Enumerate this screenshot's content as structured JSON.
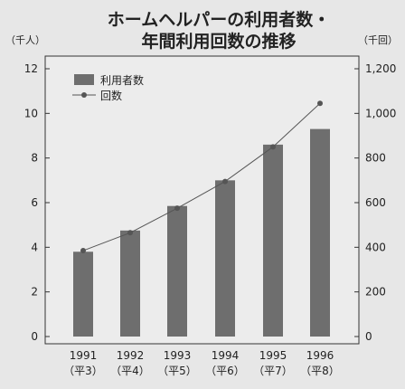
{
  "chart_data": {
    "type": "bar+line",
    "title_line1": "ホームヘルパーの利用者数・",
    "title_line2": "年間利用回数の推移",
    "left_unit": "（千人）",
    "right_unit": "（千回）",
    "categories": [
      "1991",
      "1992",
      "1993",
      "1994",
      "1995",
      "1996"
    ],
    "category_sublabels": [
      "（平3）",
      "（平4）",
      "（平5）",
      "（平6）",
      "（平7）",
      "（平8）"
    ],
    "left_axis": {
      "min": 0,
      "max": 12,
      "ticks": [
        "0",
        "2",
        "4",
        "6",
        "8",
        "10",
        "12"
      ]
    },
    "right_axis": {
      "min": 0,
      "max": 1200,
      "ticks": [
        "0",
        "200",
        "400",
        "600",
        "800",
        "1,000",
        "1,200"
      ]
    },
    "series": [
      {
        "name": "利用者数",
        "type": "bar",
        "axis": "left",
        "values": [
          3.8,
          4.75,
          5.85,
          7.0,
          8.6,
          9.3
        ],
        "color": "#6e6e6e"
      },
      {
        "name": "回数",
        "type": "line",
        "axis": "right",
        "values": [
          385,
          465,
          575,
          695,
          850,
          1045
        ],
        "color": "#555555"
      }
    ],
    "legend_position": "top-left",
    "grid": false
  }
}
